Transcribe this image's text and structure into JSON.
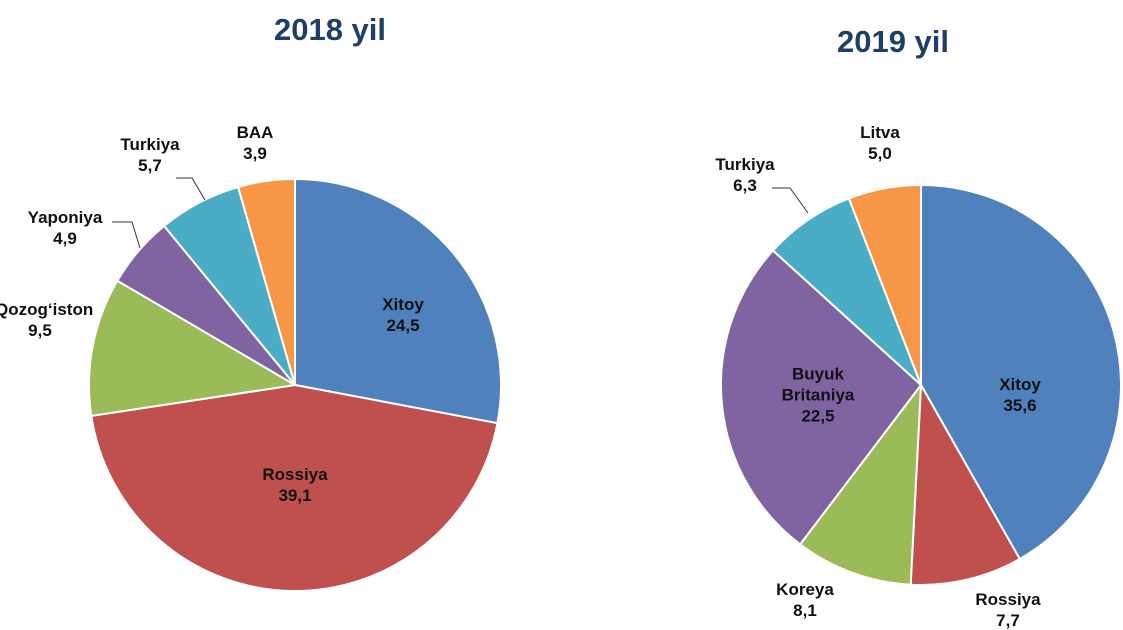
{
  "chart_data": [
    {
      "type": "pie",
      "title": "2018 yil",
      "categories": [
        "Xitoy",
        "Rossiya",
        "Qozog‘iston",
        "Yaponiya",
        "Turkiya",
        "BAA"
      ],
      "values": [
        24.5,
        39.1,
        9.5,
        4.9,
        5.7,
        3.9
      ],
      "value_labels": [
        "24,5",
        "39,1",
        "9,5",
        "4,9",
        "5,7",
        "3,9"
      ],
      "colors": [
        "#4f81bd",
        "#c0504d",
        "#9bbb59",
        "#8064a2",
        "#4bacc6",
        "#f79646"
      ]
    },
    {
      "type": "pie",
      "title": "2019 yil",
      "categories": [
        "Xitoy",
        "Rossiya",
        "Koreya",
        "Buyuk Britaniya",
        "Turkiya",
        "Litva"
      ],
      "values": [
        35.6,
        7.7,
        8.1,
        22.5,
        6.3,
        5.0
      ],
      "value_labels": [
        "35,6",
        "7,7",
        "8,1",
        "22,5",
        "6,3",
        "5,0"
      ],
      "colors": [
        "#4f81bd",
        "#c0504d",
        "#9bbb59",
        "#8064a2",
        "#4bacc6",
        "#f79646"
      ]
    }
  ]
}
